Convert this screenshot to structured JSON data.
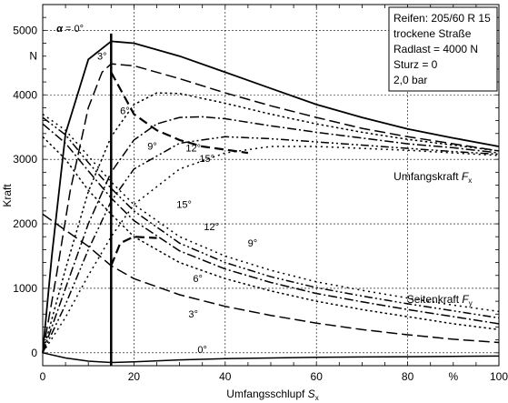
{
  "chart_data": {
    "type": "line",
    "xlabel": "Umfangsschlupf",
    "xlabel_symbol": "S",
    "xlabel_sub": "x",
    "ylabel": "Kraft",
    "xlim": [
      0,
      100
    ],
    "ylim": [
      -200,
      5400
    ],
    "grid": true,
    "x_ticks": [
      "0",
      "20",
      "40",
      "60",
      "80",
      "%",
      "100"
    ],
    "y_ticks": [
      "0",
      "1000",
      "2000",
      "3000",
      "4000",
      "5000"
    ],
    "y_unit": "N",
    "info_box": [
      "Reifen: 205/60 R 15",
      "trockene Straße",
      "Radlast = 4000 N",
      "Sturz = 0",
      "2,0 bar"
    ],
    "vertical_line_x": 15,
    "group_labels": {
      "umfangskraft": "Umfangskraft",
      "umfangskraft_symbol": "F",
      "umfangskraft_sub": "x",
      "seitenkraft": "Seitenkraft",
      "seitenkraft_symbol": "F",
      "seitenkraft_sub": "y"
    },
    "alpha_symbol": "α",
    "series": [
      {
        "name": "0°",
        "group": "Fx",
        "dash": "solid",
        "points": [
          [
            0,
            0
          ],
          [
            2,
            1500
          ],
          [
            5,
            3400
          ],
          [
            10,
            4550
          ],
          [
            15,
            4830
          ],
          [
            20,
            4800
          ],
          [
            30,
            4600
          ],
          [
            40,
            4350
          ],
          [
            50,
            4100
          ],
          [
            60,
            3850
          ],
          [
            70,
            3650
          ],
          [
            80,
            3470
          ],
          [
            90,
            3330
          ],
          [
            100,
            3200
          ]
        ]
      },
      {
        "name": "3°",
        "group": "Fx",
        "dash": "long",
        "points": [
          [
            0,
            0
          ],
          [
            3,
            1200
          ],
          [
            6,
            2500
          ],
          [
            10,
            3800
          ],
          [
            13,
            4350
          ],
          [
            15,
            4480
          ],
          [
            20,
            4450
          ],
          [
            30,
            4250
          ],
          [
            40,
            4030
          ],
          [
            50,
            3830
          ],
          [
            60,
            3650
          ],
          [
            70,
            3480
          ],
          [
            80,
            3350
          ],
          [
            90,
            3240
          ],
          [
            100,
            3130
          ]
        ]
      },
      {
        "name": "6°",
        "group": "Fx",
        "dash": "dot",
        "points": [
          [
            0,
            0
          ],
          [
            5,
            1300
          ],
          [
            10,
            2500
          ],
          [
            15,
            3350
          ],
          [
            20,
            3850
          ],
          [
            25,
            4030
          ],
          [
            30,
            4020
          ],
          [
            40,
            3870
          ],
          [
            50,
            3700
          ],
          [
            60,
            3550
          ],
          [
            70,
            3420
          ],
          [
            80,
            3310
          ],
          [
            90,
            3220
          ],
          [
            100,
            3130
          ]
        ]
      },
      {
        "name": "9°",
        "group": "Fx",
        "dash": "dashdot",
        "points": [
          [
            0,
            0
          ],
          [
            5,
            1000
          ],
          [
            10,
            2000
          ],
          [
            15,
            2800
          ],
          [
            20,
            3300
          ],
          [
            25,
            3550
          ],
          [
            30,
            3650
          ],
          [
            35,
            3660
          ],
          [
            40,
            3630
          ],
          [
            50,
            3520
          ],
          [
            60,
            3420
          ],
          [
            70,
            3330
          ],
          [
            80,
            3240
          ],
          [
            90,
            3180
          ],
          [
            100,
            3100
          ]
        ]
      },
      {
        "name": "12°",
        "group": "Fx",
        "dash": "dashdotdot",
        "points": [
          [
            0,
            0
          ],
          [
            5,
            750
          ],
          [
            10,
            1600
          ],
          [
            15,
            2350
          ],
          [
            20,
            2850
          ],
          [
            30,
            3250
          ],
          [
            40,
            3350
          ],
          [
            50,
            3320
          ],
          [
            60,
            3270
          ],
          [
            70,
            3220
          ],
          [
            80,
            3170
          ],
          [
            90,
            3120
          ],
          [
            100,
            3080
          ]
        ]
      },
      {
        "name": "15°",
        "group": "Fx",
        "dash": "dotsparse",
        "points": [
          [
            0,
            0
          ],
          [
            5,
            550
          ],
          [
            10,
            1200
          ],
          [
            15,
            1800
          ],
          [
            20,
            2300
          ],
          [
            30,
            2850
          ],
          [
            40,
            3100
          ],
          [
            50,
            3200
          ],
          [
            60,
            3200
          ],
          [
            70,
            3170
          ],
          [
            80,
            3140
          ],
          [
            90,
            3100
          ],
          [
            100,
            3060
          ]
        ]
      },
      {
        "name": "15°",
        "group": "Fy",
        "dash": "dotsparse",
        "points": [
          [
            0,
            3700
          ],
          [
            5,
            3450
          ],
          [
            10,
            3050
          ],
          [
            15,
            2650
          ],
          [
            20,
            2300
          ],
          [
            30,
            1800
          ],
          [
            40,
            1500
          ],
          [
            50,
            1280
          ],
          [
            60,
            1100
          ],
          [
            70,
            970
          ],
          [
            80,
            850
          ],
          [
            90,
            740
          ],
          [
            100,
            640
          ]
        ]
      },
      {
        "name": "12°",
        "group": "Fy",
        "dash": "dashdotdot",
        "points": [
          [
            0,
            3650
          ],
          [
            5,
            3380
          ],
          [
            10,
            2950
          ],
          [
            15,
            2550
          ],
          [
            20,
            2200
          ],
          [
            30,
            1700
          ],
          [
            40,
            1400
          ],
          [
            50,
            1180
          ],
          [
            60,
            1010
          ],
          [
            70,
            880
          ],
          [
            80,
            760
          ],
          [
            90,
            650
          ],
          [
            100,
            540
          ]
        ]
      },
      {
        "name": "9°",
        "group": "Fy",
        "dash": "dashdot",
        "points": [
          [
            0,
            3550
          ],
          [
            5,
            3250
          ],
          [
            10,
            2820
          ],
          [
            15,
            2400
          ],
          [
            20,
            2050
          ],
          [
            30,
            1580
          ],
          [
            40,
            1300
          ],
          [
            50,
            1090
          ],
          [
            60,
            920
          ],
          [
            70,
            790
          ],
          [
            80,
            670
          ],
          [
            90,
            560
          ],
          [
            100,
            450
          ]
        ]
      },
      {
        "name": "6°",
        "group": "Fy",
        "dash": "dot",
        "points": [
          [
            0,
            3350
          ],
          [
            5,
            3000
          ],
          [
            10,
            2520
          ],
          [
            15,
            2150
          ],
          [
            20,
            1800
          ],
          [
            30,
            1400
          ],
          [
            40,
            1150
          ],
          [
            50,
            960
          ],
          [
            60,
            800
          ],
          [
            70,
            670
          ],
          [
            80,
            560
          ],
          [
            90,
            450
          ],
          [
            100,
            360
          ]
        ]
      },
      {
        "name": "3°",
        "group": "Fy",
        "dash": "long",
        "points": [
          [
            0,
            2150
          ],
          [
            5,
            1900
          ],
          [
            10,
            1650
          ],
          [
            15,
            1350
          ],
          [
            20,
            1150
          ],
          [
            30,
            900
          ],
          [
            40,
            720
          ],
          [
            50,
            580
          ],
          [
            60,
            460
          ],
          [
            70,
            360
          ],
          [
            80,
            280
          ],
          [
            90,
            210
          ],
          [
            100,
            160
          ]
        ]
      },
      {
        "name": "0°",
        "group": "Fy",
        "dash": "solid",
        "points": [
          [
            0,
            0
          ],
          [
            5,
            -80
          ],
          [
            10,
            -130
          ],
          [
            15,
            -150
          ],
          [
            20,
            -140
          ],
          [
            30,
            -110
          ],
          [
            40,
            -90
          ],
          [
            50,
            -80
          ],
          [
            60,
            -70
          ],
          [
            70,
            -65
          ],
          [
            80,
            -60
          ],
          [
            90,
            -55
          ],
          [
            100,
            -50
          ]
        ]
      }
    ],
    "fy_dashed_branch": [
      [
        15,
        1350
      ],
      [
        17,
        1700
      ],
      [
        20,
        1800
      ],
      [
        25,
        1780
      ]
    ],
    "fx_dashed_branch": [
      [
        15,
        4350
      ],
      [
        20,
        3700
      ],
      [
        25,
        3450
      ],
      [
        30,
        3300
      ],
      [
        35,
        3200
      ],
      [
        40,
        3150
      ],
      [
        45,
        3100
      ]
    ],
    "curve_labels": [
      {
        "text": "3°",
        "x": 13,
        "y": 4550
      },
      {
        "text": "6°",
        "x": 18,
        "y": 3700
      },
      {
        "text": "9°",
        "x": 24,
        "y": 3150
      },
      {
        "text": "12°",
        "x": 33,
        "y": 3120
      },
      {
        "text": "15°",
        "x": 36,
        "y": 2960
      },
      {
        "text": "15°",
        "x": 31,
        "y": 2250
      },
      {
        "text": "12°",
        "x": 37,
        "y": 1900
      },
      {
        "text": "9°",
        "x": 46,
        "y": 1650
      },
      {
        "text": "6°",
        "x": 34,
        "y": 1100
      },
      {
        "text": "3°",
        "x": 33,
        "y": 550
      },
      {
        "text": "0°",
        "x": 35,
        "y": 0
      }
    ]
  }
}
